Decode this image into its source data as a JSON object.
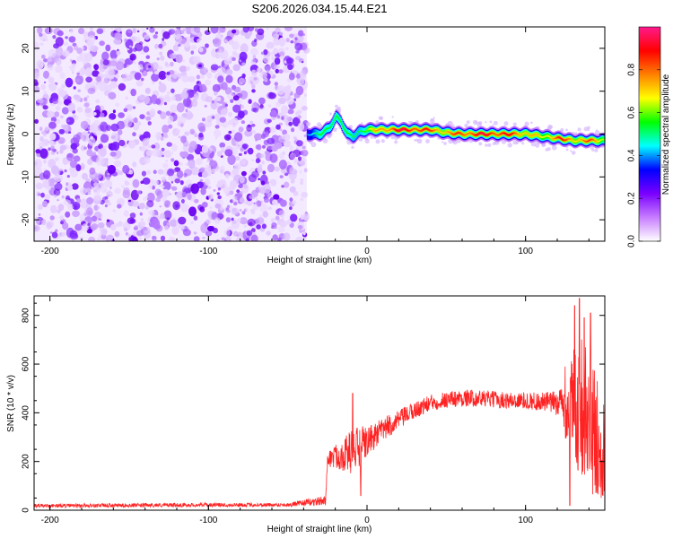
{
  "title": "S206.2026.034.15.44.E21",
  "chart_data": [
    {
      "type": "heatmap",
      "title": "S206.2026.034.15.44.E21",
      "xlabel": "Height of straight line (km)",
      "ylabel": "Frequency (Hz)",
      "xlim": [
        -210,
        150
      ],
      "ylim": [
        -25,
        25
      ],
      "xticks": [
        -200,
        -100,
        0,
        100
      ],
      "yticks": [
        -20,
        -10,
        0,
        10,
        20
      ],
      "noise_region_x": [
        -210,
        -38
      ],
      "colorbar": {
        "label": "Normalized spectral amplitude",
        "range": [
          0,
          1
        ],
        "ticks": [
          "0.0",
          "0.2",
          "0.4",
          "0.6",
          "0.8"
        ],
        "tick_values": [
          0.0,
          0.2,
          0.4,
          0.6,
          0.8
        ],
        "colors": [
          "#ffffff",
          "#c77dff",
          "#7a00ff",
          "#0000ff",
          "#00ffff",
          "#00ff00",
          "#ffff00",
          "#ff8000",
          "#ff0000",
          "#ff1a8c"
        ]
      },
      "ridge": {
        "x": [
          -38,
          -30,
          -24,
          -20,
          -17,
          -13,
          -9,
          -5,
          0,
          10,
          20,
          30,
          40,
          50,
          60,
          70,
          80,
          90,
          100,
          110,
          120,
          130,
          140,
          150
        ],
        "y": [
          0,
          0,
          1.5,
          4,
          3,
          0,
          -0.5,
          0.5,
          1,
          1,
          1,
          1,
          1,
          0.3,
          0,
          0,
          0,
          0,
          0,
          -0.5,
          -1,
          -1.5,
          -1.5,
          -1.5
        ],
        "amp": [
          0.35,
          0.45,
          0.5,
          0.55,
          0.5,
          0.45,
          0.45,
          0.5,
          0.55,
          0.75,
          0.85,
          0.85,
          0.75,
          0.7,
          0.8,
          0.85,
          0.85,
          0.8,
          0.7,
          0.6,
          0.8,
          0.7,
          0.75,
          0.6
        ]
      }
    },
    {
      "type": "line",
      "xlabel": "Height of straight line (km)",
      "ylabel": "SNR (10 * v/v)",
      "xlim": [
        -210,
        150
      ],
      "ylim": [
        0,
        880
      ],
      "xticks": [
        -200,
        -100,
        0,
        100
      ],
      "yticks": [
        0,
        200,
        400,
        600,
        800
      ],
      "series": [
        {
          "name": "SNR",
          "color": "#ff2222",
          "envelope_x": [
            -210,
            -150,
            -100,
            -50,
            -26,
            -25,
            -20,
            -15,
            -10,
            -5,
            0,
            10,
            20,
            30,
            40,
            50,
            60,
            70,
            80,
            90,
            100,
            110,
            120,
            125,
            130,
            135,
            140,
            145,
            150
          ],
          "envelope_mean": [
            18,
            20,
            22,
            22,
            40,
            210,
            220,
            230,
            240,
            250,
            280,
            330,
            370,
            410,
            440,
            455,
            460,
            460,
            455,
            450,
            450,
            445,
            440,
            420,
            420,
            430,
            350,
            300,
            250
          ],
          "envelope_spread": [
            8,
            8,
            8,
            8,
            20,
            35,
            50,
            70,
            90,
            100,
            60,
            50,
            40,
            35,
            35,
            35,
            35,
            35,
            35,
            35,
            35,
            40,
            50,
            120,
            250,
            280,
            300,
            250,
            200
          ],
          "peaks": [
            {
              "x": -9,
              "y": 480
            },
            {
              "x": -4,
              "y": 60
            },
            {
              "x": 125,
              "y": 590
            },
            {
              "x": 128,
              "y": 20
            },
            {
              "x": 131,
              "y": 840
            },
            {
              "x": 134,
              "y": 870
            },
            {
              "x": 137,
              "y": 790
            },
            {
              "x": 141,
              "y": 810
            },
            {
              "x": 146,
              "y": 100
            }
          ]
        }
      ]
    }
  ]
}
